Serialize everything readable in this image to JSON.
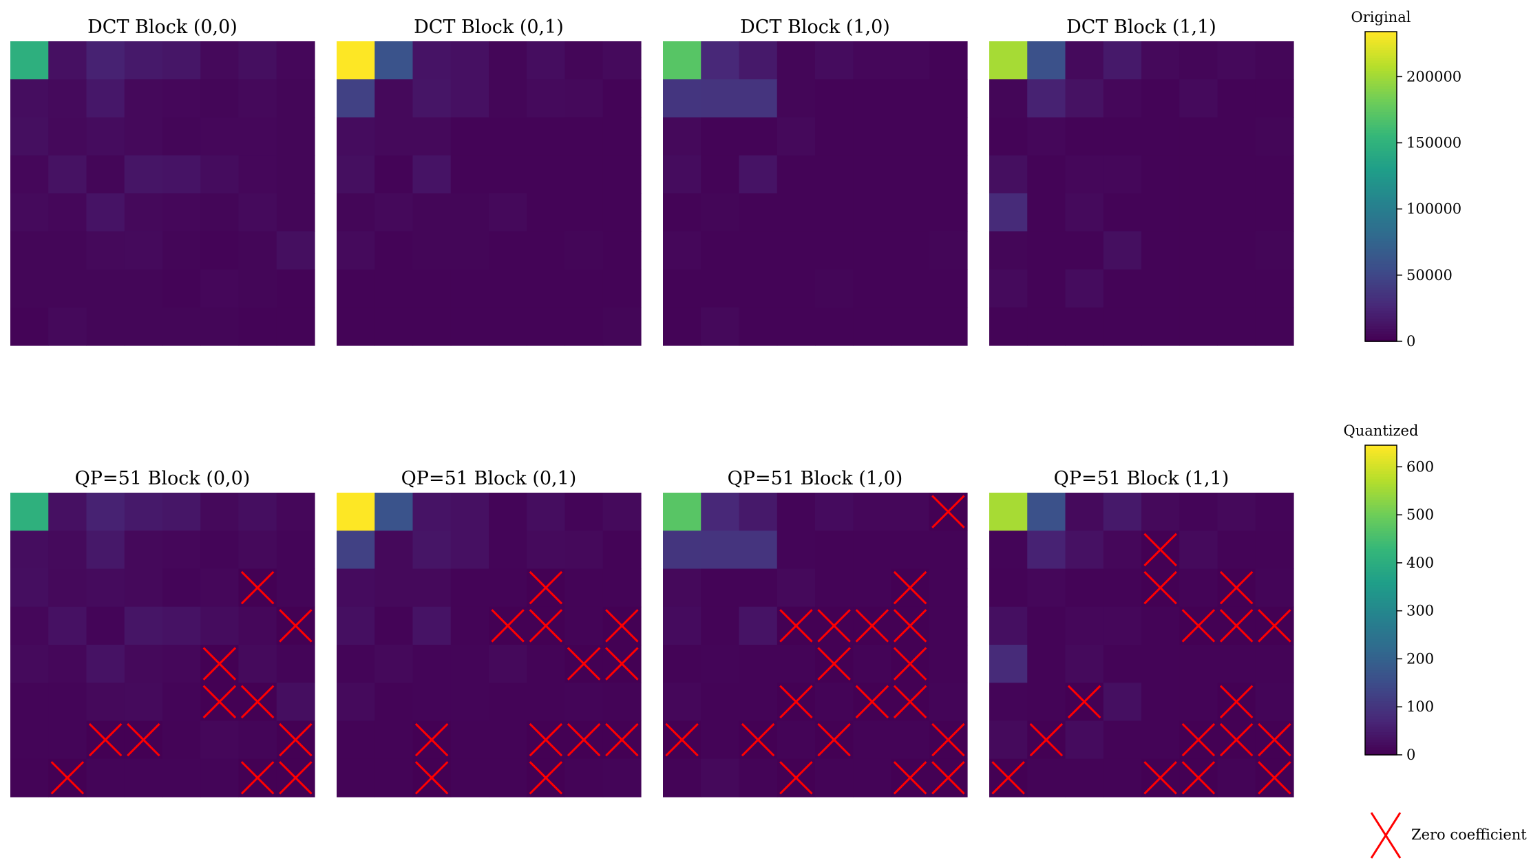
{
  "chart_data": {
    "type": "heatmap",
    "colormap": "viridis",
    "grid": false,
    "rows": [
      {
        "colorbar": {
          "title": "Original",
          "range": [
            0,
            234000
          ],
          "ticks": [
            0,
            50000,
            100000,
            150000,
            200000
          ],
          "tick_labels": [
            "0",
            "50000",
            "100000",
            "150000",
            "200000"
          ]
        },
        "panels": [
          {
            "title": "DCT Block (0,0)",
            "values": [
              [
                148000,
                10000,
                22000,
                16000,
                14000,
                5000,
                9000,
                4000
              ],
              [
                8000,
                6000,
                15000,
                5000,
                4000,
                3000,
                5000,
                3000
              ],
              [
                9000,
                5000,
                7000,
                5000,
                3000,
                4000,
                4000,
                3000
              ],
              [
                4000,
                11000,
                3000,
                13000,
                12000,
                7000,
                4000,
                3000
              ],
              [
                6000,
                4000,
                12000,
                5000,
                4000,
                3000,
                6000,
                3000
              ],
              [
                3000,
                3000,
                5000,
                6000,
                3000,
                2000,
                3000,
                9000
              ],
              [
                3000,
                3000,
                3000,
                3000,
                2000,
                4000,
                3000,
                2000
              ],
              [
                2000,
                5000,
                3000,
                3000,
                3000,
                3000,
                2000,
                2000
              ]
            ]
          },
          {
            "title": "DCT Block (0,1)",
            "values": [
              [
                234000,
                60000,
                12000,
                10000,
                3000,
                8000,
                3000,
                6000
              ],
              [
                45000,
                5000,
                13000,
                10000,
                3000,
                6000,
                5000,
                2000
              ],
              [
                7000,
                5000,
                5000,
                2000,
                2000,
                2000,
                2000,
                2000
              ],
              [
                9000,
                2000,
                12000,
                2000,
                2000,
                2000,
                2000,
                2000
              ],
              [
                3000,
                5000,
                3000,
                3000,
                5000,
                2000,
                2000,
                2000
              ],
              [
                6000,
                2000,
                3000,
                3000,
                2000,
                2000,
                3000,
                2000
              ],
              [
                2000,
                2000,
                2000,
                2000,
                2000,
                2000,
                2000,
                2000
              ],
              [
                2000,
                2000,
                2000,
                2000,
                2000,
                2000,
                2000,
                3000
              ]
            ]
          },
          {
            "title": "DCT Block (1,0)",
            "values": [
              [
                172000,
                26000,
                16000,
                3000,
                7000,
                4000,
                4000,
                2000
              ],
              [
                36000,
                35000,
                35000,
                3000,
                2000,
                2000,
                2000,
                2000
              ],
              [
                5000,
                2000,
                2000,
                5000,
                2000,
                2000,
                2000,
                2000
              ],
              [
                7000,
                2000,
                12000,
                2000,
                2000,
                2000,
                2000,
                2000
              ],
              [
                2000,
                3000,
                2000,
                2000,
                2000,
                2000,
                2000,
                2000
              ],
              [
                4000,
                2000,
                2000,
                2000,
                2000,
                2000,
                2000,
                3000
              ],
              [
                2000,
                2000,
                2000,
                2000,
                3000,
                2000,
                2000,
                2000
              ],
              [
                2000,
                5000,
                2000,
                2000,
                2000,
                2000,
                2000,
                2000
              ]
            ]
          },
          {
            "title": "DCT Block (1,1)",
            "values": [
              [
                203000,
                58000,
                6000,
                16000,
                5000,
                3000,
                5000,
                3000
              ],
              [
                3000,
                22000,
                11000,
                4000,
                2000,
                6000,
                2000,
                2000
              ],
              [
                2000,
                4000,
                2000,
                2000,
                2000,
                2000,
                2000,
                3000
              ],
              [
                9000,
                2000,
                4000,
                4000,
                2000,
                2000,
                2000,
                2000
              ],
              [
                28000,
                2000,
                6000,
                2000,
                2000,
                2000,
                2000,
                2000
              ],
              [
                3000,
                2000,
                2000,
                9000,
                2000,
                2000,
                2000,
                3000
              ],
              [
                6000,
                2000,
                7000,
                2000,
                2000,
                2000,
                2000,
                2000
              ],
              [
                2000,
                2000,
                2000,
                2000,
                2000,
                2000,
                2000,
                2000
              ]
            ]
          }
        ]
      },
      {
        "colorbar": {
          "title": "Quantized",
          "range": [
            0,
            645
          ],
          "ticks": [
            0,
            100,
            200,
            300,
            400,
            500,
            600
          ],
          "tick_labels": [
            "0",
            "100",
            "200",
            "300",
            "400",
            "500",
            "600"
          ]
        },
        "panels": [
          {
            "title": "QP=51 Block (0,0)",
            "values": [
              [
                410,
                28,
                60,
                44,
                38,
                14,
                24,
                11
              ],
              [
                22,
                16,
                42,
                14,
                11,
                8,
                14,
                8
              ],
              [
                24,
                14,
                18,
                14,
                8,
                11,
                0,
                8
              ],
              [
                11,
                30,
                8,
                36,
                32,
                20,
                11,
                0
              ],
              [
                16,
                11,
                32,
                14,
                11,
                0,
                16,
                8
              ],
              [
                8,
                8,
                14,
                16,
                8,
                0,
                0,
                24
              ],
              [
                8,
                8,
                0,
                0,
                6,
                11,
                8,
                0
              ],
              [
                6,
                0,
                8,
                8,
                8,
                8,
                0,
                0
              ]
            ]
          },
          {
            "title": "QP=51 Block (0,1)",
            "values": [
              [
                645,
                165,
                33,
                28,
                8,
                22,
                8,
                16
              ],
              [
                124,
                14,
                36,
                28,
                8,
                16,
                14,
                6
              ],
              [
                19,
                14,
                14,
                6,
                6,
                0,
                6,
                6
              ],
              [
                25,
                6,
                33,
                6,
                0,
                0,
                6,
                0
              ],
              [
                8,
                14,
                8,
                8,
                14,
                6,
                0,
                0
              ],
              [
                16,
                6,
                8,
                8,
                6,
                6,
                8,
                6
              ],
              [
                6,
                6,
                0,
                6,
                6,
                0,
                0,
                0
              ],
              [
                6,
                6,
                0,
                6,
                6,
                0,
                6,
                8
              ]
            ]
          },
          {
            "title": "QP=51 Block (1,0)",
            "values": [
              [
                475,
                72,
                44,
                8,
                19,
                11,
                11,
                0
              ],
              [
                99,
                96,
                96,
                8,
                6,
                6,
                6,
                6
              ],
              [
                14,
                6,
                6,
                14,
                6,
                6,
                0,
                6
              ],
              [
                19,
                6,
                33,
                0,
                0,
                0,
                0,
                6
              ],
              [
                6,
                8,
                6,
                6,
                0,
                6,
                0,
                6
              ],
              [
                11,
                6,
                6,
                0,
                6,
                0,
                0,
                8
              ],
              [
                0,
                6,
                0,
                6,
                0,
                6,
                6,
                0
              ],
              [
                6,
                14,
                6,
                0,
                6,
                6,
                0,
                0
              ]
            ]
          },
          {
            "title": "QP=51 Block (1,1)",
            "values": [
              [
                560,
                160,
                16,
                44,
                14,
                8,
                14,
                8
              ],
              [
                8,
                61,
                30,
                11,
                0,
                16,
                6,
                6
              ],
              [
                6,
                11,
                6,
                6,
                0,
                6,
                0,
                8
              ],
              [
                25,
                6,
                11,
                11,
                6,
                0,
                0,
                0
              ],
              [
                77,
                6,
                16,
                6,
                6,
                6,
                6,
                6
              ],
              [
                8,
                6,
                0,
                25,
                6,
                6,
                0,
                8
              ],
              [
                16,
                0,
                19,
                6,
                6,
                0,
                0,
                0
              ],
              [
                0,
                6,
                6,
                6,
                0,
                0,
                6,
                0
              ]
            ]
          }
        ]
      }
    ],
    "legend": {
      "marker": "red-x",
      "label": "Zero coefficient",
      "placement": "bottom-right"
    }
  }
}
